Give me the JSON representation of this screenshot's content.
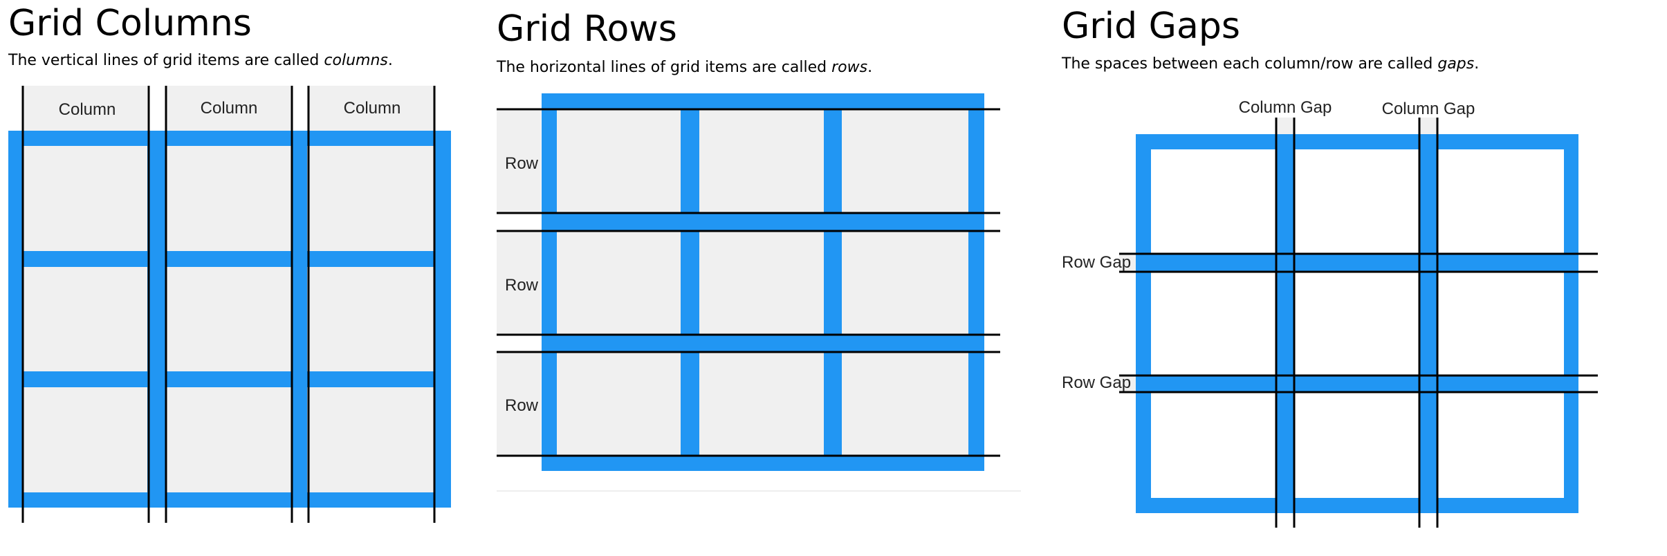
{
  "colors": {
    "accent": "#2196F3",
    "cell": "#F0F0F0",
    "line": "#000000",
    "background": "#FFFFFF",
    "divider": "#EEEEEE"
  },
  "panels": [
    {
      "title": "Grid Columns",
      "desc_before": "The vertical lines of grid items are called ",
      "desc_em": "columns",
      "desc_after": ".",
      "labels": [
        "Column",
        "Column",
        "Column"
      ]
    },
    {
      "title": "Grid Rows",
      "desc_before": "The horizontal lines of grid items are called ",
      "desc_em": "rows",
      "desc_after": ".",
      "labels": [
        "Row",
        "Row",
        "Row"
      ]
    },
    {
      "title": "Grid Gaps",
      "desc_before": "The spaces between each column/row are called ",
      "desc_em": "gaps",
      "desc_after": ".",
      "column_gap_labels": [
        "Column Gap",
        "Column Gap"
      ],
      "row_gap_labels": [
        "Row Gap",
        "Row Gap"
      ]
    }
  ]
}
